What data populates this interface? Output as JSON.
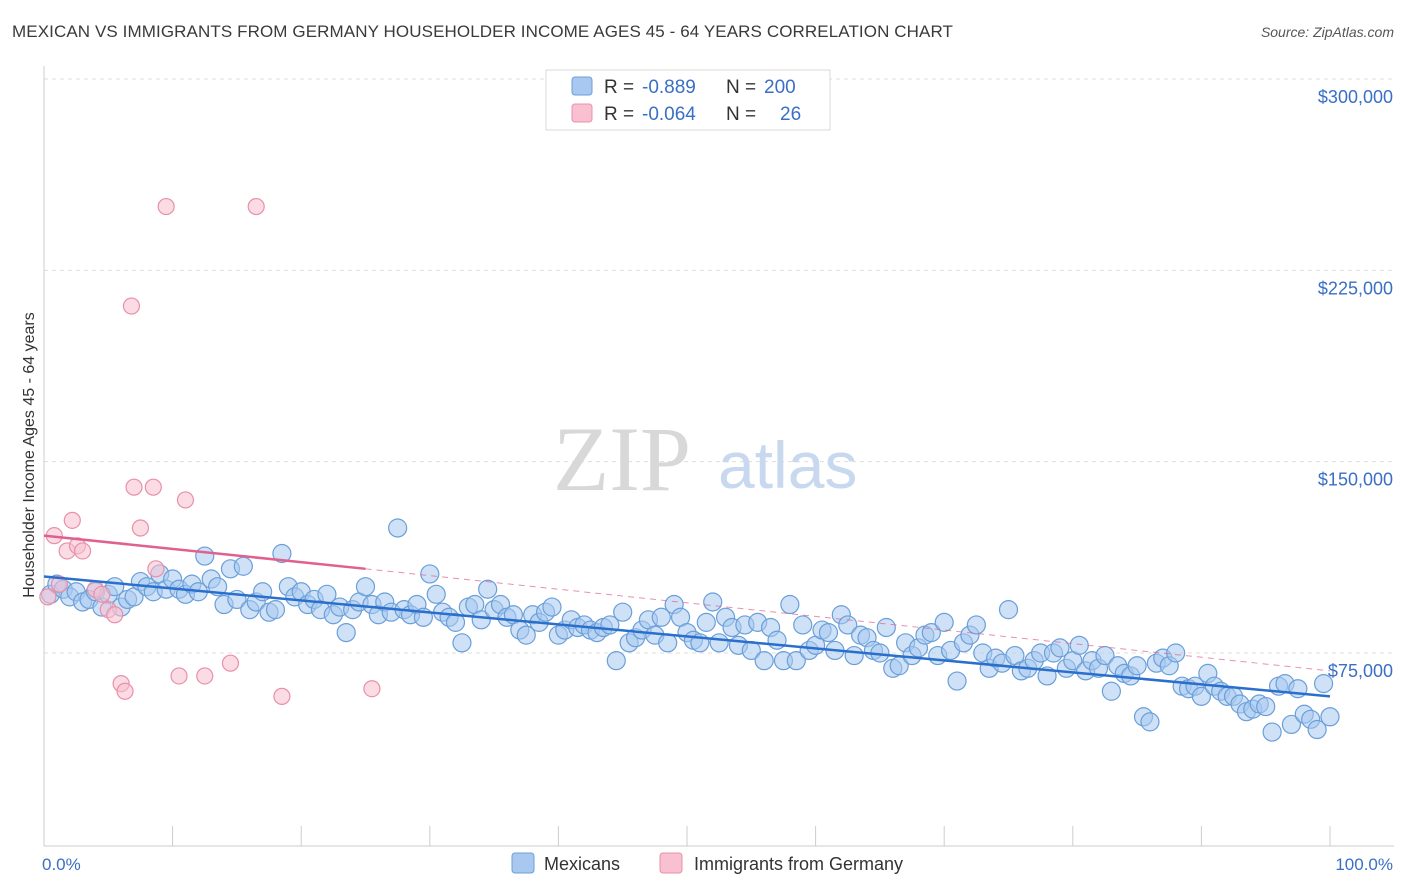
{
  "title": "MEXICAN VS IMMIGRANTS FROM GERMANY HOUSEHOLDER INCOME AGES 45 - 64 YEARS CORRELATION CHART",
  "source": "Source: ZipAtlas.com",
  "watermark": {
    "zip": "ZIP",
    "atlas": "atlas"
  },
  "colors": {
    "blue_fill": "#a8c8f0",
    "blue_stroke": "#6a9fd8",
    "blue_line": "#2a6fcc",
    "pink_fill": "#f8c0d0",
    "pink_stroke": "#e890a8",
    "pink_line": "#e06090",
    "axis_text": "#3a6fc6"
  },
  "legend": {
    "rows": [
      {
        "r_label": "R =",
        "r_value": "-0.889",
        "n_label": "N =",
        "n_value": "200",
        "color": "blue"
      },
      {
        "r_label": "R =",
        "r_value": "-0.064",
        "n_label": "N =",
        "n_value": "26",
        "color": "pink"
      }
    ]
  },
  "bottom_legend": [
    "Mexicans",
    "Immigrants from Germany"
  ],
  "chart_data": {
    "type": "scatter",
    "ylabel": "Householder Income Ages 45 - 64 years",
    "x_tick_labels": [
      "0.0%",
      "100.0%"
    ],
    "y_tick_labels": [
      "$300,000",
      "$225,000",
      "$150,000",
      "$75,000"
    ],
    "y_ticks": [
      300000,
      225000,
      150000,
      75000
    ],
    "xlim": [
      0,
      100
    ],
    "ylim": [
      0,
      310000
    ],
    "grid": true,
    "series": [
      {
        "name": "Mexicans",
        "trend": {
          "x": [
            0,
            100
          ],
          "y": [
            105000,
            58000
          ]
        },
        "points": [
          [
            0.5,
            98000
          ],
          [
            1,
            102000
          ],
          [
            1.5,
            100000
          ],
          [
            2,
            97000
          ],
          [
            2.5,
            99000
          ],
          [
            3,
            95000
          ],
          [
            3.5,
            96000
          ],
          [
            4,
            99000
          ],
          [
            4.5,
            93000
          ],
          [
            5,
            98000
          ],
          [
            5.5,
            101000
          ],
          [
            6,
            93000
          ],
          [
            6.5,
            96000
          ],
          [
            7,
            97000
          ],
          [
            7.5,
            103000
          ],
          [
            8,
            101000
          ],
          [
            8.5,
            99000
          ],
          [
            9,
            106000
          ],
          [
            9.5,
            100000
          ],
          [
            10,
            104000
          ],
          [
            10.5,
            100000
          ],
          [
            11,
            98000
          ],
          [
            11.5,
            102000
          ],
          [
            12,
            99000
          ],
          [
            12.5,
            113000
          ],
          [
            13,
            104000
          ],
          [
            13.5,
            101000
          ],
          [
            14,
            94000
          ],
          [
            14.5,
            108000
          ],
          [
            15,
            96000
          ],
          [
            15.5,
            109000
          ],
          [
            16,
            92000
          ],
          [
            16.5,
            95000
          ],
          [
            17,
            99000
          ],
          [
            17.5,
            91000
          ],
          [
            18,
            92000
          ],
          [
            18.5,
            114000
          ],
          [
            19,
            101000
          ],
          [
            19.5,
            97000
          ],
          [
            20,
            99000
          ],
          [
            20.5,
            94000
          ],
          [
            21,
            96000
          ],
          [
            21.5,
            92000
          ],
          [
            22,
            98000
          ],
          [
            22.5,
            90000
          ],
          [
            23,
            93000
          ],
          [
            23.5,
            83000
          ],
          [
            24,
            92000
          ],
          [
            24.5,
            95000
          ],
          [
            25,
            101000
          ],
          [
            25.5,
            94000
          ],
          [
            26,
            90000
          ],
          [
            26.5,
            95000
          ],
          [
            27,
            91000
          ],
          [
            27.5,
            124000
          ],
          [
            28,
            92000
          ],
          [
            28.5,
            90000
          ],
          [
            29,
            94000
          ],
          [
            29.5,
            89000
          ],
          [
            30,
            106000
          ],
          [
            30.5,
            98000
          ],
          [
            31,
            91000
          ],
          [
            31.5,
            89000
          ],
          [
            32,
            87000
          ],
          [
            32.5,
            79000
          ],
          [
            33,
            93000
          ],
          [
            33.5,
            94000
          ],
          [
            34,
            88000
          ],
          [
            34.5,
            100000
          ],
          [
            35,
            92000
          ],
          [
            35.5,
            94000
          ],
          [
            36,
            89000
          ],
          [
            36.5,
            90000
          ],
          [
            37,
            84000
          ],
          [
            37.5,
            82000
          ],
          [
            38,
            90000
          ],
          [
            38.5,
            87000
          ],
          [
            39,
            91000
          ],
          [
            39.5,
            93000
          ],
          [
            40,
            82000
          ],
          [
            40.5,
            84000
          ],
          [
            41,
            88000
          ],
          [
            41.5,
            85000
          ],
          [
            42,
            86000
          ],
          [
            42.5,
            84000
          ],
          [
            43,
            83000
          ],
          [
            43.5,
            85000
          ],
          [
            44,
            86000
          ],
          [
            44.5,
            72000
          ],
          [
            45,
            91000
          ],
          [
            45.5,
            79000
          ],
          [
            46,
            81000
          ],
          [
            46.5,
            84000
          ],
          [
            47,
            88000
          ],
          [
            47.5,
            82000
          ],
          [
            48,
            89000
          ],
          [
            48.5,
            79000
          ],
          [
            49,
            94000
          ],
          [
            49.5,
            89000
          ],
          [
            50,
            83000
          ],
          [
            50.5,
            80000
          ],
          [
            51,
            79000
          ],
          [
            51.5,
            87000
          ],
          [
            52,
            95000
          ],
          [
            52.5,
            79000
          ],
          [
            53,
            89000
          ],
          [
            53.5,
            85000
          ],
          [
            54,
            78000
          ],
          [
            54.5,
            86000
          ],
          [
            55,
            76000
          ],
          [
            55.5,
            87000
          ],
          [
            56,
            72000
          ],
          [
            56.5,
            85000
          ],
          [
            57,
            80000
          ],
          [
            57.5,
            72000
          ],
          [
            58,
            94000
          ],
          [
            58.5,
            72000
          ],
          [
            59,
            86000
          ],
          [
            59.5,
            76000
          ],
          [
            60,
            78000
          ],
          [
            60.5,
            84000
          ],
          [
            61,
            83000
          ],
          [
            61.5,
            76000
          ],
          [
            62,
            90000
          ],
          [
            62.5,
            86000
          ],
          [
            63,
            74000
          ],
          [
            63.5,
            82000
          ],
          [
            64,
            81000
          ],
          [
            64.5,
            76000
          ],
          [
            65,
            75000
          ],
          [
            65.5,
            85000
          ],
          [
            66,
            69000
          ],
          [
            66.5,
            70000
          ],
          [
            67,
            79000
          ],
          [
            67.5,
            74000
          ],
          [
            68,
            77000
          ],
          [
            68.5,
            82000
          ],
          [
            69,
            83000
          ],
          [
            69.5,
            74000
          ],
          [
            70,
            87000
          ],
          [
            70.5,
            76000
          ],
          [
            71,
            64000
          ],
          [
            71.5,
            79000
          ],
          [
            72,
            82000
          ],
          [
            72.5,
            86000
          ],
          [
            73,
            75000
          ],
          [
            73.5,
            69000
          ],
          [
            74,
            73000
          ],
          [
            74.5,
            71000
          ],
          [
            75,
            92000
          ],
          [
            75.5,
            74000
          ],
          [
            76,
            68000
          ],
          [
            76.5,
            69000
          ],
          [
            77,
            72000
          ],
          [
            77.5,
            75000
          ],
          [
            78,
            66000
          ],
          [
            78.5,
            75000
          ],
          [
            79,
            77000
          ],
          [
            79.5,
            69000
          ],
          [
            80,
            72000
          ],
          [
            80.5,
            78000
          ],
          [
            81,
            68000
          ],
          [
            81.5,
            72000
          ],
          [
            82,
            69000
          ],
          [
            82.5,
            74000
          ],
          [
            83,
            60000
          ],
          [
            83.5,
            70000
          ],
          [
            84,
            67000
          ],
          [
            84.5,
            66000
          ],
          [
            85,
            70000
          ],
          [
            85.5,
            50000
          ],
          [
            86,
            48000
          ],
          [
            86.5,
            71000
          ],
          [
            87,
            73000
          ],
          [
            87.5,
            70000
          ],
          [
            88,
            75000
          ],
          [
            88.5,
            62000
          ],
          [
            89,
            61000
          ],
          [
            89.5,
            62000
          ],
          [
            90,
            58000
          ],
          [
            90.5,
            67000
          ],
          [
            91,
            62000
          ],
          [
            91.5,
            60000
          ],
          [
            92,
            58000
          ],
          [
            92.5,
            58000
          ],
          [
            93,
            55000
          ],
          [
            93.5,
            52000
          ],
          [
            94,
            53000
          ],
          [
            94.5,
            55000
          ],
          [
            95,
            54000
          ],
          [
            95.5,
            44000
          ],
          [
            96,
            62000
          ],
          [
            96.5,
            63000
          ],
          [
            97,
            47000
          ],
          [
            97.5,
            61000
          ],
          [
            98,
            51000
          ],
          [
            98.5,
            49000
          ],
          [
            99,
            45000
          ],
          [
            99.5,
            63000
          ],
          [
            100,
            50000
          ]
        ]
      },
      {
        "name": "Immigrants from Germany",
        "trend": {
          "x": [
            0,
            25
          ],
          "y": [
            121000,
            108000
          ]
        },
        "trend_extended": {
          "x": [
            25,
            100
          ],
          "y": [
            108000,
            68000
          ]
        },
        "points": [
          [
            0.3,
            97000
          ],
          [
            0.8,
            121000
          ],
          [
            1.2,
            102000
          ],
          [
            1.8,
            115000
          ],
          [
            2.2,
            127000
          ],
          [
            2.6,
            117000
          ],
          [
            3,
            115000
          ],
          [
            4,
            100000
          ],
          [
            4.5,
            98000
          ],
          [
            5,
            92000
          ],
          [
            5.5,
            90000
          ],
          [
            6,
            63000
          ],
          [
            6.3,
            60000
          ],
          [
            7,
            140000
          ],
          [
            7.5,
            124000
          ],
          [
            8.5,
            140000
          ],
          [
            8.7,
            108000
          ],
          [
            6.8,
            211000
          ],
          [
            9.5,
            250000
          ],
          [
            10.5,
            66000
          ],
          [
            11,
            135000
          ],
          [
            12.5,
            66000
          ],
          [
            14.5,
            71000
          ],
          [
            16.5,
            250000
          ],
          [
            18.5,
            58000
          ],
          [
            25.5,
            61000
          ]
        ]
      }
    ]
  }
}
